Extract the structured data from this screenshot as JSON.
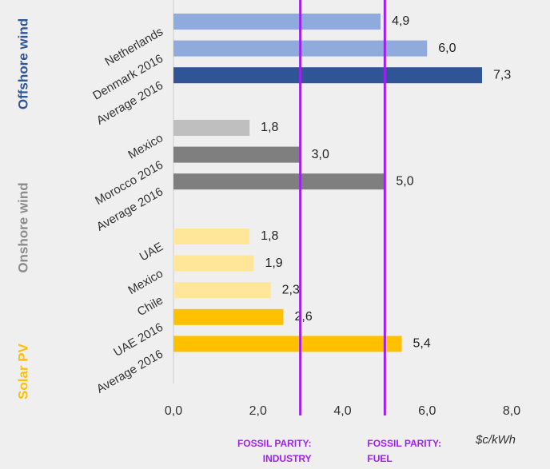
{
  "chart_data": {
    "type": "bar",
    "orientation": "horizontal",
    "xlim": [
      0,
      8
    ],
    "xticks": [
      {
        "value": 0,
        "label": "0,0"
      },
      {
        "value": 2,
        "label": "2,0"
      },
      {
        "value": 4,
        "label": "4,0"
      },
      {
        "value": 6,
        "label": "6,0"
      },
      {
        "value": 8,
        "label": "8,0"
      }
    ],
    "xlabel": "$c/kWh",
    "groups": [
      {
        "name": "Offshore wind",
        "color": "#2f5597",
        "categories": [
          "Netherlands",
          "Denmark 2016",
          "Average 2016"
        ],
        "values": [
          4.9,
          6.0,
          7.3
        ],
        "value_labels": [
          "4,9",
          "6,0",
          "7,3"
        ],
        "colors": [
          "#8faadc",
          "#8faadc",
          "#2f5597"
        ]
      },
      {
        "name": "Onshore wind",
        "color": "#8c8c8c",
        "categories": [
          "Mexico",
          "Morocco 2016",
          "Average 2016"
        ],
        "values": [
          1.8,
          3.0,
          5.0
        ],
        "value_labels": [
          "1,8",
          "3,0",
          "5,0"
        ],
        "colors": [
          "#bfbfbf",
          "#7f7f7f",
          "#7f7f7f"
        ]
      },
      {
        "name": "Solar PV",
        "color": "#ffc000",
        "categories": [
          "UAE",
          "Mexico",
          "Chile",
          "UAE 2016",
          "Average 2016"
        ],
        "values": [
          1.8,
          1.9,
          2.3,
          2.6,
          5.4
        ],
        "value_labels": [
          "1,8",
          "1,9",
          "2,3",
          "2,6",
          "5,4"
        ],
        "colors": [
          "#ffe699",
          "#ffe699",
          "#ffe699",
          "#ffc000",
          "#ffc000"
        ]
      }
    ],
    "reference_lines": [
      {
        "value": 3,
        "label": [
          "FOSSIL PARITY:",
          "INDUSTRY"
        ]
      },
      {
        "value": 5,
        "label": [
          "FOSSIL PARITY:",
          "FUEL"
        ]
      }
    ],
    "reference_color": "#a020f0"
  }
}
